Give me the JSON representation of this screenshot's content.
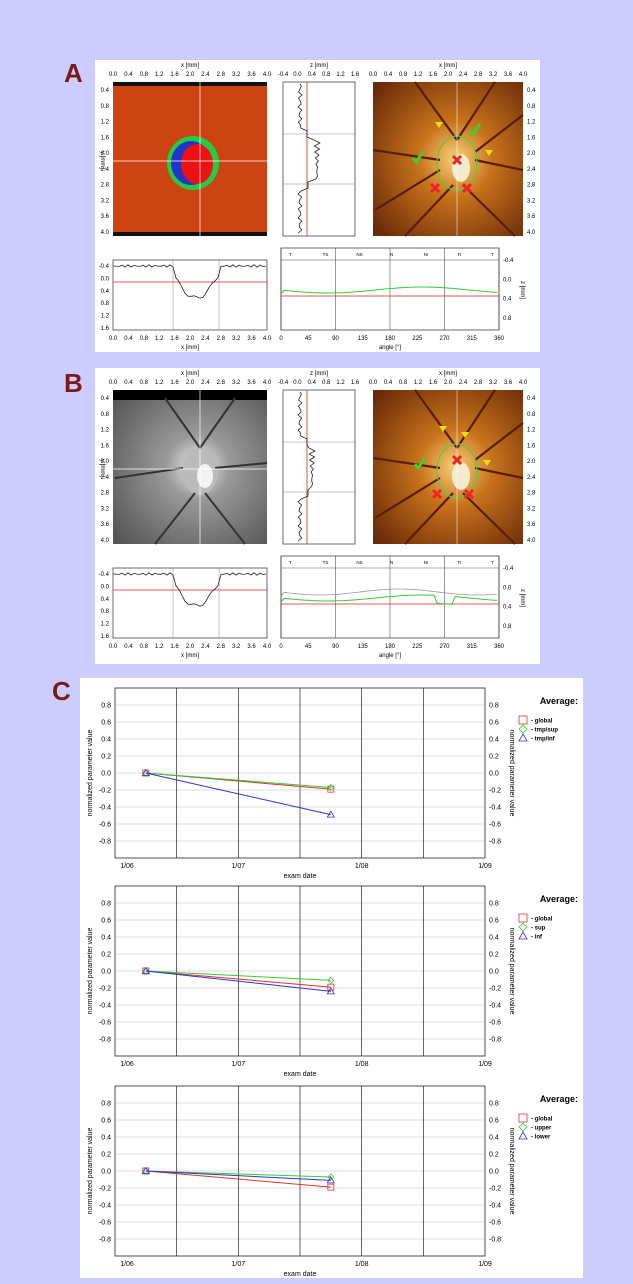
{
  "panels": {
    "A_label": "A",
    "B_label": "B",
    "C_label": "C"
  },
  "colors": {
    "background": "#ccccff",
    "panel_label": "#7a1a1a",
    "global": "#dd3333",
    "series2": "#33cc33",
    "series3": "#3333cc",
    "flat_red": "#cc3311",
    "fundus": "#b35a10"
  },
  "imaging": [
    {
      "id": "A",
      "x_axis_label": "x [mm]",
      "x_ticks": [
        "0.0",
        "0.4",
        "0.8",
        "1.2",
        "1.6",
        "2.0",
        "2.4",
        "2.8",
        "3.2",
        "3.6",
        "4.0"
      ],
      "y_ticks": [
        "0.4",
        "0.8",
        "1.2",
        "1.6",
        "2.0",
        "2.4",
        "2.8",
        "3.2",
        "3.6",
        "4.0"
      ],
      "y_axis_label": "y [mm]",
      "z_axis_label": "z [mm]",
      "z_ticks": [
        "-0.4",
        "0.0",
        "0.4",
        "0.8",
        "1.2",
        "1.6"
      ],
      "profile_y_ticks": [
        "-0.4",
        "0.0",
        "0.4",
        "0.8",
        "1.2",
        "1.6"
      ],
      "profile_x_label": "x [mm]",
      "angle_label": "angle [°]",
      "angle_ticks": [
        "0",
        "45",
        "90",
        "135",
        "180",
        "225",
        "270",
        "315",
        "360"
      ],
      "angle_z_ticks": [
        "-0.4",
        "0.0",
        "0.4",
        "0.8"
      ],
      "sector_labels": [
        "T",
        "TS",
        "NS",
        "N",
        "NI",
        "TI",
        "T"
      ]
    },
    {
      "id": "B",
      "x_axis_label": "x [mm]",
      "x_ticks": [
        "0.0",
        "0.4",
        "0.8",
        "1.2",
        "1.6",
        "2.0",
        "2.4",
        "2.8",
        "3.2",
        "3.6",
        "4.0"
      ],
      "y_ticks": [
        "0.4",
        "0.8",
        "1.2",
        "1.6",
        "2.0",
        "2.4",
        "2.8",
        "3.2",
        "3.6",
        "4.0"
      ],
      "y_axis_label": "y [mm]",
      "z_axis_label": "z [mm]",
      "z_ticks": [
        "-0.4",
        "0.0",
        "0.4",
        "0.8",
        "1.2",
        "1.6"
      ],
      "profile_y_ticks": [
        "-0.4",
        "0.0",
        "0.4",
        "0.8",
        "1.2",
        "1.6"
      ],
      "profile_x_label": "x [mm]",
      "angle_label": "angle [°]",
      "angle_ticks": [
        "0",
        "45",
        "90",
        "135",
        "180",
        "225",
        "270",
        "315",
        "360"
      ],
      "angle_z_ticks": [
        "-0.4",
        "0.0",
        "0.4",
        "0.8"
      ],
      "sector_labels": [
        "T",
        "TS",
        "NS",
        "N",
        "NI",
        "TI",
        "T"
      ]
    }
  ],
  "chart_data": [
    {
      "type": "line",
      "xlabel": "exam date",
      "ylabel": "normalized parameter value",
      "x_tick_labels": [
        "1/06",
        "1/07",
        "1/08",
        "1/09"
      ],
      "y_ticks": [
        "0.8",
        "0.6",
        "0.4",
        "0.2",
        "0.0",
        "-0.2",
        "-0.4",
        "-0.6",
        "-0.8"
      ],
      "ylim": [
        -1.0,
        1.0
      ],
      "legend_title": "Average:",
      "legend_position": "top-right",
      "x": [
        "2006-04",
        "2007-10"
      ],
      "series": [
        {
          "name": "global",
          "marker": "square",
          "color": "#dd3333",
          "values": [
            0.0,
            -0.19
          ]
        },
        {
          "name": "tmp/sup",
          "marker": "diamond",
          "color": "#33cc33",
          "values": [
            0.0,
            -0.17
          ]
        },
        {
          "name": "tmp/inf",
          "marker": "triangle",
          "color": "#3333cc",
          "values": [
            0.0,
            -0.49
          ]
        }
      ]
    },
    {
      "type": "line",
      "xlabel": "exam date",
      "ylabel": "normalized parameter value",
      "x_tick_labels": [
        "1/06",
        "1/07",
        "1/08",
        "1/09"
      ],
      "y_ticks": [
        "0.8",
        "0.6",
        "0.4",
        "0.2",
        "0.0",
        "-0.2",
        "-0.4",
        "-0.6",
        "-0.8"
      ],
      "ylim": [
        -1.0,
        1.0
      ],
      "legend_title": "Average:",
      "legend_position": "top-right",
      "x": [
        "2006-04",
        "2007-10"
      ],
      "series": [
        {
          "name": "global",
          "marker": "square",
          "color": "#dd3333",
          "values": [
            0.0,
            -0.19
          ]
        },
        {
          "name": "sup",
          "marker": "diamond",
          "color": "#33cc33",
          "values": [
            0.0,
            -0.11
          ]
        },
        {
          "name": "inf",
          "marker": "triangle",
          "color": "#3333cc",
          "values": [
            0.0,
            -0.24
          ]
        }
      ]
    },
    {
      "type": "line",
      "xlabel": "exam date",
      "ylabel": "normalized parameter value",
      "x_tick_labels": [
        "1/06",
        "1/07",
        "1/08",
        "1/09"
      ],
      "y_ticks": [
        "0.8",
        "0.6",
        "0.4",
        "0.2",
        "0.0",
        "-0.2",
        "-0.4",
        "-0.6",
        "-0.8"
      ],
      "ylim": [
        -1.0,
        1.0
      ],
      "legend_title": "Average:",
      "legend_position": "top-right",
      "x": [
        "2006-04",
        "2007-10"
      ],
      "series": [
        {
          "name": "global",
          "marker": "square",
          "color": "#dd3333",
          "values": [
            0.0,
            -0.19
          ]
        },
        {
          "name": "upper",
          "marker": "diamond",
          "color": "#33cc33",
          "values": [
            0.0,
            -0.07
          ]
        },
        {
          "name": "lower",
          "marker": "triangle",
          "color": "#3333cc",
          "values": [
            0.0,
            -0.11
          ]
        }
      ]
    }
  ]
}
